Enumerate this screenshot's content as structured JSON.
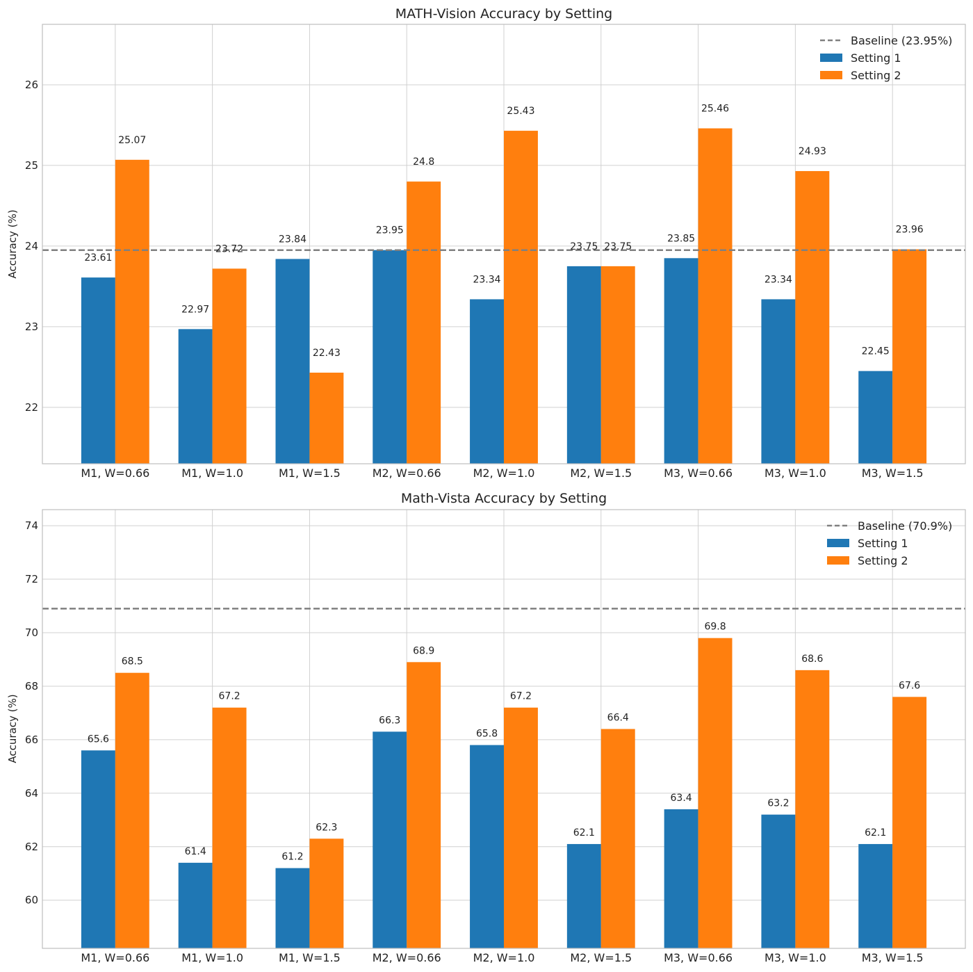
{
  "chart_data": [
    {
      "type": "bar",
      "title": "MATH-Vision Accuracy by Setting",
      "xlabel": "",
      "ylabel": "Accuracy (%)",
      "ylim": [
        21.3,
        26.75
      ],
      "yticks": [
        22,
        23,
        24,
        25,
        26
      ],
      "grid": true,
      "legend_position": "top-right",
      "categories": [
        "M1, W=0.66",
        "M1, W=1.0",
        "M1, W=1.5",
        "M2, W=0.66",
        "M2, W=1.0",
        "M2, W=1.5",
        "M3, W=0.66",
        "M3, W=1.0",
        "M3, W=1.5"
      ],
      "series": [
        {
          "name": "Setting 1",
          "color": "#1f77b4",
          "values": [
            23.61,
            22.97,
            23.84,
            23.95,
            23.34,
            23.75,
            23.85,
            23.34,
            22.45
          ],
          "labels": [
            "23.61",
            "22.97",
            "23.84",
            "23.95",
            "23.34",
            "23.75",
            "23.85",
            "23.34",
            "22.45"
          ]
        },
        {
          "name": "Setting 2",
          "color": "#ff7f0e",
          "values": [
            25.07,
            23.72,
            22.43,
            24.8,
            25.43,
            23.75,
            25.46,
            24.93,
            23.96
          ],
          "labels": [
            "25.07",
            "23.72",
            "22.43",
            "24.8",
            "25.43",
            "23.75",
            "25.46",
            "24.93",
            "23.96"
          ]
        }
      ],
      "baseline": {
        "name": "Baseline (23.95%)",
        "value": 23.95,
        "color": "#808080"
      }
    },
    {
      "type": "bar",
      "title": "Math-Vista Accuracy by Setting",
      "xlabel": "",
      "ylabel": "Accuracy (%)",
      "ylim": [
        58.2,
        74.6
      ],
      "yticks": [
        60,
        62,
        64,
        66,
        68,
        70,
        72,
        74
      ],
      "grid": true,
      "legend_position": "top-right",
      "categories": [
        "M1, W=0.66",
        "M1, W=1.0",
        "M1, W=1.5",
        "M2, W=0.66",
        "M2, W=1.0",
        "M2, W=1.5",
        "M3, W=0.66",
        "M3, W=1.0",
        "M3, W=1.5"
      ],
      "series": [
        {
          "name": "Setting 1",
          "color": "#1f77b4",
          "values": [
            65.6,
            61.4,
            61.2,
            66.3,
            65.8,
            62.1,
            63.4,
            63.2,
            62.1
          ],
          "labels": [
            "65.6",
            "61.4",
            "61.2",
            "66.3",
            "65.8",
            "62.1",
            "63.4",
            "63.2",
            "62.1"
          ]
        },
        {
          "name": "Setting 2",
          "color": "#ff7f0e",
          "values": [
            68.5,
            67.2,
            62.3,
            68.9,
            67.2,
            66.4,
            69.8,
            68.6,
            67.6
          ],
          "labels": [
            "68.5",
            "67.2",
            "62.3",
            "68.9",
            "67.2",
            "66.4",
            "69.8",
            "68.6",
            "67.6"
          ]
        }
      ],
      "baseline": {
        "name": "Baseline (70.9%)",
        "value": 70.9,
        "color": "#808080"
      }
    }
  ]
}
